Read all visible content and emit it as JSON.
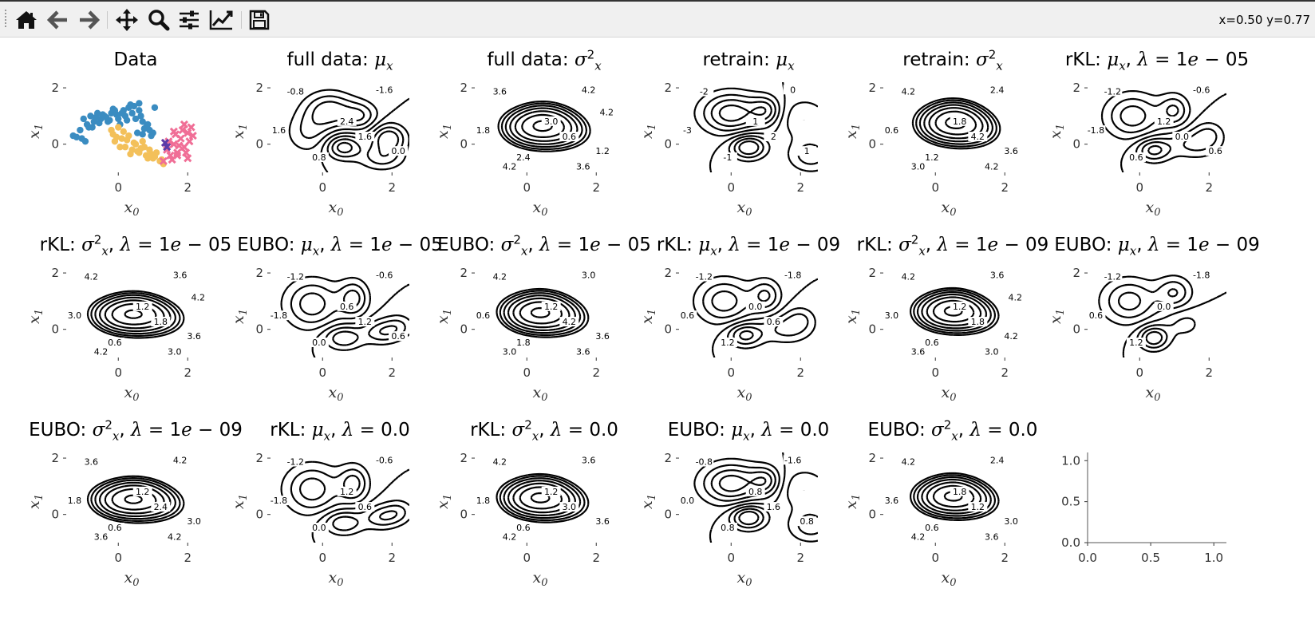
{
  "toolbar": {
    "buttons": [
      {
        "id": "home",
        "icon": "home-icon",
        "tooltip": ""
      },
      {
        "id": "back",
        "icon": "arrow-left-icon",
        "tooltip": ""
      },
      {
        "id": "forward",
        "icon": "arrow-right-icon",
        "tooltip": ""
      },
      {
        "id": "pan",
        "icon": "move-icon",
        "tooltip": ""
      },
      {
        "id": "zoom",
        "icon": "magnifier-icon",
        "tooltip": ""
      },
      {
        "id": "subplots",
        "icon": "sliders-icon",
        "tooltip": ""
      },
      {
        "id": "axes",
        "icon": "line-chart-icon",
        "tooltip": ""
      },
      {
        "id": "save",
        "icon": "floppy-disk-icon",
        "tooltip": ""
      }
    ],
    "coordinates": "x=0.50 y=0.77"
  },
  "chart_data": [
    {
      "type": "scatter",
      "title": "Data",
      "xlabel": "x0",
      "ylabel": "x1",
      "xticks": [
        "0",
        "2"
      ],
      "yticks": [
        "0",
        "2"
      ],
      "series": [
        {
          "name": "",
          "color": "#3a8cc1",
          "marker": "circle",
          "x": [
            -1.3,
            -1.2,
            -1.1,
            -1.0,
            -0.9,
            -0.8,
            -0.7,
            -0.6,
            -0.5,
            -0.4,
            -0.3,
            -0.2,
            -0.1,
            0.0,
            0.1,
            0.2,
            0.3,
            0.4,
            0.5,
            0.6,
            0.7,
            0.8,
            0.9,
            1.0,
            -0.95,
            -0.75,
            -0.55,
            -0.35,
            -0.15,
            0.05,
            0.25,
            0.45,
            0.65,
            0.85,
            0.55,
            0.75,
            0.95,
            0.35,
            0.15,
            -0.05,
            -0.25,
            -0.45,
            -0.65,
            -0.85,
            -1.05,
            0.6,
            0.7,
            1.05
          ],
          "y": [
            0.3,
            0.25,
            0.5,
            0.9,
            0.7,
            1.0,
            0.8,
            1.1,
            0.9,
            1.0,
            0.8,
            1.1,
            1.2,
            0.9,
            1.1,
            1.0,
            1.3,
            1.1,
            0.9,
            1.2,
            0.8,
            0.6,
            0.5,
            0.4,
            0.1,
            0.6,
            0.75,
            0.95,
            1.25,
            0.7,
            0.85,
            1.35,
            1.0,
            0.7,
            0.4,
            0.55,
            0.3,
            1.4,
            1.2,
            1.05,
            0.85,
            1.05,
            0.95,
            0.6,
            0.2,
            1.45,
            0.35,
            1.3
          ]
        },
        {
          "name": "",
          "color": "#f3c05a",
          "marker": "circle",
          "x": [
            -0.2,
            -0.1,
            0.0,
            0.1,
            0.2,
            0.3,
            0.4,
            0.5,
            0.6,
            0.7,
            0.8,
            0.9,
            1.0,
            1.1,
            1.2,
            1.3,
            -0.15,
            0.05,
            0.25,
            0.45,
            0.65,
            0.85,
            1.05,
            1.25,
            0.35,
            0.55,
            0.75,
            0.95,
            0.15,
            -0.05
          ],
          "y": [
            0.5,
            0.1,
            0.6,
            0.2,
            -0.1,
            0.3,
            -0.2,
            0.0,
            -0.3,
            0.1,
            -0.4,
            -0.2,
            -0.5,
            -0.3,
            -0.6,
            -0.7,
            0.35,
            -0.1,
            0.15,
            0.05,
            -0.15,
            -0.5,
            -0.45,
            -0.55,
            -0.35,
            -0.25,
            -0.1,
            -0.35,
            0.45,
            0.25
          ]
        },
        {
          "name": "",
          "color": "#f06e96",
          "marker": "x",
          "x": [
            1.3,
            1.4,
            1.5,
            1.6,
            1.7,
            1.8,
            1.9,
            2.0,
            2.1,
            1.45,
            1.65,
            1.85,
            2.05,
            1.55,
            1.75,
            1.95,
            2.15,
            1.35,
            1.6,
            1.9,
            2.0,
            1.7
          ],
          "y": [
            -0.6,
            -0.2,
            -0.4,
            0.0,
            -0.3,
            0.2,
            -0.1,
            0.4,
            0.6,
            0.1,
            0.35,
            0.5,
            0.1,
            -0.55,
            -0.05,
            -0.3,
            0.3,
            0.05,
            0.45,
            0.7,
            -0.5,
            -0.4
          ]
        },
        {
          "name": "",
          "color": "#5a3aa8",
          "marker": "x",
          "x": [
            1.35,
            1.4
          ],
          "y": [
            0.05,
            -0.1
          ]
        }
      ]
    },
    {
      "type": "contour",
      "title": "full data: μx",
      "field": "mu",
      "variant": "full",
      "xlabel": "x0",
      "ylabel": "x1",
      "xticks": [
        "0",
        "2"
      ],
      "yticks": [
        "0",
        "2"
      ],
      "contour_labels": [
        "-0.8",
        "-1.6",
        "1.6",
        "0.8",
        "2.4",
        "1.6",
        "0.0"
      ]
    },
    {
      "type": "contour",
      "title": "full data: σ²x",
      "field": "var",
      "variant": "full",
      "xlabel": "x0",
      "ylabel": "x1",
      "xticks": [
        "0",
        "2"
      ],
      "yticks": [
        "0",
        "2"
      ],
      "contour_labels": [
        "3.6",
        "4.2",
        "1.8",
        "2.4",
        "3.0",
        "0.6",
        "1.2",
        "4.2",
        "3.6",
        "4.2"
      ]
    },
    {
      "type": "contour",
      "title": "retrain: μx",
      "field": "mu",
      "variant": "retrain",
      "xlabel": "x0",
      "ylabel": "x1",
      "xticks": [
        "0",
        "2"
      ],
      "yticks": [
        "0",
        "2"
      ],
      "contour_labels": [
        "-2",
        "0",
        "-3",
        "-1",
        "1",
        "2",
        "1"
      ]
    },
    {
      "type": "contour",
      "title": "retrain: σ²x",
      "field": "var",
      "variant": "retrain",
      "xlabel": "x0",
      "ylabel": "x1",
      "xticks": [
        "0",
        "2"
      ],
      "yticks": [
        "0",
        "2"
      ],
      "contour_labels": [
        "4.2",
        "2.4",
        "0.6",
        "1.2",
        "1.8",
        "4.2",
        "3.6",
        "3.0",
        "4.2"
      ]
    },
    {
      "type": "contour",
      "title": "rKL: μx, λ = 1e − 05",
      "field": "mu",
      "variant": "a",
      "xlabel": "x0",
      "ylabel": "x1",
      "xticks": [
        "0",
        "2"
      ],
      "yticks": [
        "0",
        "2"
      ],
      "contour_labels": [
        "-1.2",
        "-0.6",
        "-1.8",
        "0.6",
        "1.2",
        "0.0",
        "0.6"
      ]
    },
    {
      "type": "contour",
      "title": "rKL: σ²x, λ = 1e − 05",
      "field": "var",
      "variant": "a",
      "xlabel": "x0",
      "ylabel": "x1",
      "xticks": [
        "0",
        "2"
      ],
      "yticks": [
        "0",
        "2"
      ],
      "contour_labels": [
        "4.2",
        "3.6",
        "3.0",
        "0.6",
        "1.2",
        "1.8",
        "3.6",
        "4.2",
        "3.0",
        "4.2"
      ]
    },
    {
      "type": "contour",
      "title": "EUBO: μx, λ = 1e − 05",
      "field": "mu",
      "variant": "b",
      "xlabel": "x0",
      "ylabel": "x1",
      "xticks": [
        "0",
        "2"
      ],
      "yticks": [
        "0",
        "2"
      ],
      "contour_labels": [
        "-1.2",
        "-0.6",
        "-1.8",
        "0.0",
        "0.6",
        "1.2",
        "0.6"
      ]
    },
    {
      "type": "contour",
      "title": "EUBO: σ²x, λ = 1e − 05",
      "field": "var",
      "variant": "b",
      "xlabel": "x0",
      "ylabel": "x1",
      "xticks": [
        "0",
        "2"
      ],
      "yticks": [
        "0",
        "2"
      ],
      "contour_labels": [
        "4.2",
        "3.0",
        "0.6",
        "1.8",
        "1.2",
        "4.2",
        "3.6",
        "3.0",
        "3.6"
      ]
    },
    {
      "type": "contour",
      "title": "rKL: μx, λ = 1e − 09",
      "field": "mu",
      "variant": "a",
      "xlabel": "x0",
      "ylabel": "x1",
      "xticks": [
        "0",
        "2"
      ],
      "yticks": [
        "0",
        "2"
      ],
      "contour_labels": [
        "-1.2",
        "-1.8",
        "0.6",
        "1.2",
        "0.0",
        "0.6"
      ]
    },
    {
      "type": "contour",
      "title": "rKL: σ²x, λ = 1e − 09",
      "field": "var",
      "variant": "c",
      "xlabel": "x0",
      "ylabel": "x1",
      "xticks": [
        "0",
        "2"
      ],
      "yticks": [
        "0",
        "2"
      ],
      "contour_labels": [
        "4.2",
        "3.6",
        "3.0",
        "0.6",
        "1.2",
        "1.8",
        "4.2",
        "3.6",
        "3.0",
        "4.2"
      ]
    },
    {
      "type": "contour",
      "title": "EUBO: μx, λ = 1e − 09",
      "field": "mu",
      "variant": "c",
      "xlabel": "x0",
      "ylabel": "x1",
      "xticks": [
        "0",
        "2"
      ],
      "yticks": [
        "0",
        "2"
      ],
      "contour_labels": [
        "-1.2",
        "-1.8",
        "0.6",
        "1.2",
        "0.0"
      ]
    },
    {
      "type": "contour",
      "title": "EUBO: σ²x, λ = 1e − 09",
      "field": "var",
      "variant": "a",
      "xlabel": "x0",
      "ylabel": "x1",
      "xticks": [
        "0",
        "2"
      ],
      "yticks": [
        "0",
        "2"
      ],
      "contour_labels": [
        "3.6",
        "4.2",
        "1.8",
        "0.6",
        "1.2",
        "2.4",
        "3.0",
        "3.6",
        "4.2"
      ]
    },
    {
      "type": "contour",
      "title": "rKL: μx, λ = 0.0",
      "field": "mu",
      "variant": "b",
      "xlabel": "x0",
      "ylabel": "x1",
      "xticks": [
        "0",
        "2"
      ],
      "yticks": [
        "0",
        "2"
      ],
      "contour_labels": [
        "-1.2",
        "-0.6",
        "-1.8",
        "0.0",
        "1.2",
        "0.6"
      ]
    },
    {
      "type": "contour",
      "title": "rKL: σ²x, λ = 0.0",
      "field": "var",
      "variant": "b",
      "xlabel": "x0",
      "ylabel": "x1",
      "xticks": [
        "0",
        "2"
      ],
      "yticks": [
        "0",
        "2"
      ],
      "contour_labels": [
        "4.2",
        "3.6",
        "1.8",
        "0.6",
        "1.2",
        "3.0",
        "3.6",
        "4.2"
      ]
    },
    {
      "type": "contour",
      "title": "EUBO: μx, λ = 0.0",
      "field": "mu",
      "variant": "retrain",
      "xlabel": "x0",
      "ylabel": "x1",
      "xticks": [
        "0",
        "2"
      ],
      "yticks": [
        "0",
        "2"
      ],
      "contour_labels": [
        "-0.8",
        "-1.6",
        "0.0",
        "0.8",
        "0.8",
        "1.6",
        "0.8"
      ]
    },
    {
      "type": "contour",
      "title": "EUBO: σ²x, λ = 0.0",
      "field": "var",
      "variant": "c",
      "xlabel": "x0",
      "ylabel": "x1",
      "xticks": [
        "0",
        "2"
      ],
      "yticks": [
        "0",
        "2"
      ],
      "contour_labels": [
        "4.2",
        "2.4",
        "3.6",
        "0.6",
        "1.8",
        "1.2",
        "3.0",
        "4.2",
        "3.6"
      ]
    },
    {
      "type": "empty",
      "title": "",
      "xlabel": "",
      "ylabel": "",
      "xticks": [
        "0.0",
        "0.5",
        "1.0"
      ],
      "yticks": [
        "0.0",
        "0.5",
        "1.0"
      ]
    }
  ]
}
